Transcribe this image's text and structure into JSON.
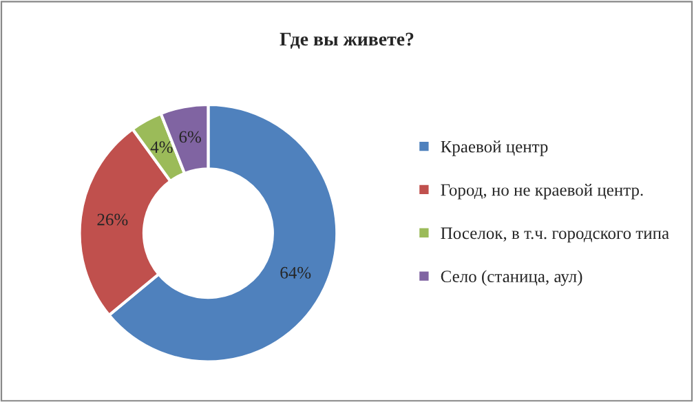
{
  "chart_data": {
    "type": "donut",
    "title": "Где вы живете?",
    "categories": [
      "Краевой центр",
      "Город, но не краевой центр.",
      "Поселок, в т.ч. городского типа",
      "Село (станица, аул)"
    ],
    "values": [
      64,
      26,
      4,
      6
    ],
    "colors": [
      "#4f81bd",
      "#c0504d",
      "#9bbb59",
      "#8064a2"
    ],
    "value_labels": [
      "64%",
      "26%",
      "4%",
      "6%"
    ],
    "legend": "right"
  }
}
